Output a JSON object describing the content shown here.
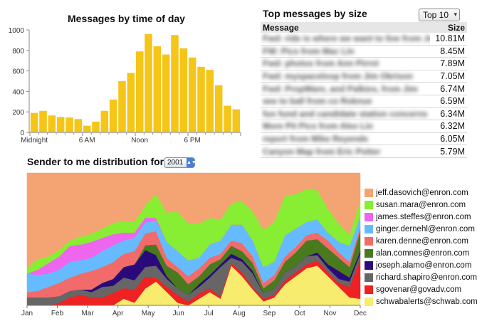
{
  "bar_chart": {
    "title": "Messages by time of day"
  },
  "top_messages": {
    "title": "Top messages by size",
    "select_value": "Top 10",
    "headers": {
      "message": "Message",
      "size": "Size"
    },
    "rows": [
      {
        "message": "Fwd: ride is where we want to live from Jo",
        "size": "10.81M"
      },
      {
        "message": "FW: Pics from Mac Lin",
        "size": "8.45M"
      },
      {
        "message": "Fwd: photos from Ann Pirrot",
        "size": "7.89M"
      },
      {
        "message": "Fwd: myspaceloop from Jim Okrison",
        "size": "7.05M"
      },
      {
        "message": "Fwd: PropWare, and Palkies, from Jim",
        "size": "6.74M"
      },
      {
        "message": "see to ball from co Roknue",
        "size": "6.59M"
      },
      {
        "message": "fun fund and candidate station concerns",
        "size": "6.34M"
      },
      {
        "message": "More Pit Pics from Alex Lin",
        "size": "6.32M"
      },
      {
        "message": "report from Mike Reyende",
        "size": "6.05M"
      },
      {
        "message": "Canyon Map from Eric Potter",
        "size": "5.79M"
      }
    ]
  },
  "distribution": {
    "title": "Sender to me distribution for",
    "year_value": "2001"
  },
  "chart_data": [
    {
      "type": "bar",
      "title": "Messages by time of day",
      "categories": [
        "0",
        "1",
        "2",
        "3",
        "4",
        "5",
        "6",
        "7",
        "8",
        "9",
        "10",
        "11",
        "12",
        "13",
        "14",
        "15",
        "16",
        "17",
        "18",
        "19",
        "20",
        "21",
        "22",
        "23"
      ],
      "x_tick_labels": [
        {
          "index": 0,
          "label": "Midnight"
        },
        {
          "index": 6,
          "label": "6 AM"
        },
        {
          "index": 12,
          "label": "Noon"
        },
        {
          "index": 18,
          "label": "6 PM"
        }
      ],
      "values": [
        190,
        210,
        165,
        150,
        145,
        130,
        65,
        105,
        210,
        320,
        500,
        580,
        790,
        960,
        840,
        760,
        950,
        820,
        730,
        640,
        610,
        460,
        260,
        225
      ],
      "ylim": [
        0,
        1000
      ],
      "yticks": [
        0,
        200,
        400,
        600,
        800,
        1000
      ],
      "color": "#f5c518",
      "grid": false
    },
    {
      "type": "area",
      "stacked": true,
      "normalized": true,
      "months": [
        "Jan",
        "Feb",
        "Mar",
        "Apr",
        "May",
        "Jun",
        "Jul",
        "Aug",
        "Sep",
        "Oct",
        "Nov",
        "Dec"
      ],
      "legend_position": "right",
      "series": [
        {
          "name": "schwabalerts@schwab.com",
          "color": "#f7ec6e",
          "values": [
            0,
            0,
            0,
            0,
            0,
            0,
            0,
            0,
            0,
            0.05,
            0.02,
            0.14,
            0.18,
            0.1,
            0.02,
            0,
            0.05,
            0.1,
            0.05,
            0.3,
            0.22,
            0.12,
            0.03,
            0.06,
            0.16,
            0.22,
            0.28,
            0.3,
            0.22,
            0.14,
            0.06,
            0.05
          ]
        },
        {
          "name": "sgovenar@govadv.com",
          "color": "#ee2222",
          "values": [
            0,
            0,
            0,
            0.02,
            0.06,
            0.08,
            0.06,
            0.06,
            0.09,
            0.08,
            0.1,
            0.1,
            0.03,
            0.04,
            0.06,
            0.03,
            0.04,
            0.03,
            0.02,
            0.02,
            0.03,
            0.02,
            0.02,
            0.02,
            0.03,
            0.03,
            0.03,
            0.04,
            0.03,
            0.03,
            0.08,
            0.3
          ]
        },
        {
          "name": "richard.shapiro@enron.com",
          "color": "#666666",
          "values": [
            0.06,
            0.06,
            0.06,
            0.05,
            0.05,
            0.04,
            0.04,
            0.08,
            0.05,
            0.08,
            0.07,
            0.08,
            0.09,
            0.06,
            0.05,
            0.05,
            0.05,
            0.08,
            0.22,
            0.04,
            0.08,
            0.1,
            0.04,
            0.05,
            0.06,
            0.05,
            0.06,
            0.04,
            0.03,
            0.03,
            0.04,
            0.04
          ]
        },
        {
          "name": "joseph.alamo@enron.com",
          "color": "#2a0a7a",
          "values": [
            0,
            0,
            0,
            0,
            0,
            0,
            0.02,
            0.03,
            0.05,
            0.08,
            0.12,
            0.14,
            0.08,
            0.02,
            0,
            0,
            0.02,
            0.02,
            0.02,
            0.03,
            0.02,
            0.02,
            0,
            0,
            0,
            0,
            0,
            0.02,
            0.03,
            0.06,
            0.03,
            0.02
          ]
        },
        {
          "name": "alan.comnes@enron.com",
          "color": "#4a7a1e",
          "values": [
            0,
            0,
            0,
            0,
            0,
            0,
            0,
            0,
            0,
            0,
            0,
            0.04,
            0.08,
            0.08,
            0.12,
            0.08,
            0.06,
            0.08,
            0.04,
            0.06,
            0.06,
            0.06,
            0.04,
            0.06,
            0.08,
            0.1,
            0.12,
            0.1,
            0.12,
            0.1,
            0.08,
            0.15
          ]
        },
        {
          "name": "karen.denne@enron.com",
          "color": "#f26b6b",
          "values": [
            0.04,
            0.05,
            0.08,
            0.1,
            0.1,
            0.12,
            0.14,
            0.12,
            0.12,
            0.1,
            0.1,
            0.1,
            0.1,
            0.06,
            0.04,
            0.06,
            0.06,
            0.05,
            0.04,
            0.04,
            0.06,
            0.05,
            0.04,
            0.04,
            0.04,
            0.04,
            0.04,
            0.05,
            0.06,
            0.04,
            0.04,
            0.03
          ]
        },
        {
          "name": "ginger.dernehl@enron.com",
          "color": "#66bbff",
          "values": [
            0.14,
            0.12,
            0.1,
            0.1,
            0.12,
            0.1,
            0.1,
            0.12,
            0.12,
            0.1,
            0.1,
            0.09,
            0.08,
            0.12,
            0.12,
            0.12,
            0.08,
            0.1,
            0.1,
            0.12,
            0.14,
            0.12,
            0.12,
            0.1,
            0.16,
            0.14,
            0.1,
            0.1,
            0.06,
            0.08,
            0.12,
            0.08
          ]
        },
        {
          "name": "james.steffes@enron.com",
          "color": "#ee66ee",
          "values": [
            0,
            0.04,
            0.08,
            0.1,
            0.12,
            0.12,
            0.12,
            0.1,
            0.08,
            0.06,
            0.04,
            0.04,
            0.02,
            0,
            0,
            0,
            0,
            0,
            0,
            0,
            0,
            0,
            0,
            0,
            0,
            0,
            0,
            0,
            0,
            0,
            0,
            0
          ]
        },
        {
          "name": "susan.mara@enron.com",
          "color": "#88ee33",
          "values": [
            0.04,
            0.08,
            0.05,
            0.05,
            0.04,
            0.06,
            0.06,
            0.07,
            0.08,
            0.09,
            0.08,
            0.1,
            0.18,
            0.22,
            0.3,
            0.28,
            0.26,
            0.2,
            0.16,
            0.16,
            0.18,
            0.22,
            0.28,
            0.3,
            0.3,
            0.26,
            0.25,
            0.22,
            0.18,
            0.14,
            0.08,
            0.12
          ]
        },
        {
          "name": "jeff.dasovich@enron.com",
          "color": "#f4a373",
          "values": [
            0.72,
            0.65,
            0.63,
            0.58,
            0.51,
            0.48,
            0.46,
            0.42,
            0.36,
            0.36,
            0.37,
            0.27,
            0.16,
            0.3,
            0.29,
            0.38,
            0.38,
            0.34,
            0.35,
            0.23,
            0.21,
            0.29,
            0.43,
            0.37,
            0.17,
            0.16,
            0.12,
            0.13,
            0.27,
            0.38,
            0.47,
            0.21
          ]
        }
      ]
    }
  ]
}
